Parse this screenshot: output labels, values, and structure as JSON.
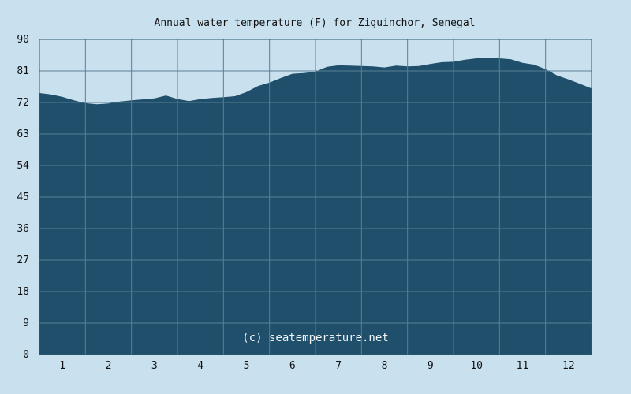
{
  "chart_data": {
    "type": "area",
    "title": "Annual water temperature (F) for Ziguinchor, Senegal",
    "watermark": "(c) seatemperature.net",
    "xlabel": "",
    "ylabel": "",
    "xlim": [
      0.5,
      12.5
    ],
    "ylim": [
      0,
      90
    ],
    "yticks": [
      "0",
      "9",
      "18",
      "27",
      "36",
      "45",
      "54",
      "63",
      "72",
      "81",
      "90"
    ],
    "xticks": [
      "1",
      "2",
      "3",
      "4",
      "5",
      "6",
      "7",
      "8",
      "9",
      "10",
      "11",
      "12"
    ],
    "grid": true,
    "colors": {
      "fill": "#1f4f6b",
      "grid": "#5a7f96",
      "background": "#c9e1ee"
    },
    "x": [
      0.5,
      0.75,
      1.0,
      1.25,
      1.5,
      1.75,
      2.0,
      2.25,
      2.5,
      2.75,
      3.0,
      3.25,
      3.5,
      3.75,
      4.0,
      4.25,
      4.5,
      4.75,
      5.0,
      5.25,
      5.5,
      5.75,
      6.0,
      6.25,
      6.5,
      6.75,
      7.0,
      7.25,
      7.5,
      7.75,
      8.0,
      8.25,
      8.5,
      8.75,
      9.0,
      9.25,
      9.5,
      9.75,
      10.0,
      10.25,
      10.5,
      10.75,
      11.0,
      11.25,
      11.5,
      11.75,
      12.0,
      12.25,
      12.5
    ],
    "values": [
      74.7,
      74.3,
      73.6,
      72.6,
      71.8,
      71.5,
      71.7,
      72.3,
      72.6,
      72.9,
      73.2,
      74.0,
      73.0,
      72.4,
      73.0,
      73.3,
      73.5,
      73.8,
      75.0,
      76.7,
      77.7,
      79.0,
      80.2,
      80.4,
      80.8,
      82.2,
      82.6,
      82.5,
      82.4,
      82.3,
      82.0,
      82.5,
      82.3,
      82.4,
      83.0,
      83.5,
      83.6,
      84.2,
      84.6,
      84.8,
      84.6,
      84.3,
      83.3,
      82.8,
      81.5,
      79.7,
      78.6,
      77.3,
      76.0
    ]
  }
}
